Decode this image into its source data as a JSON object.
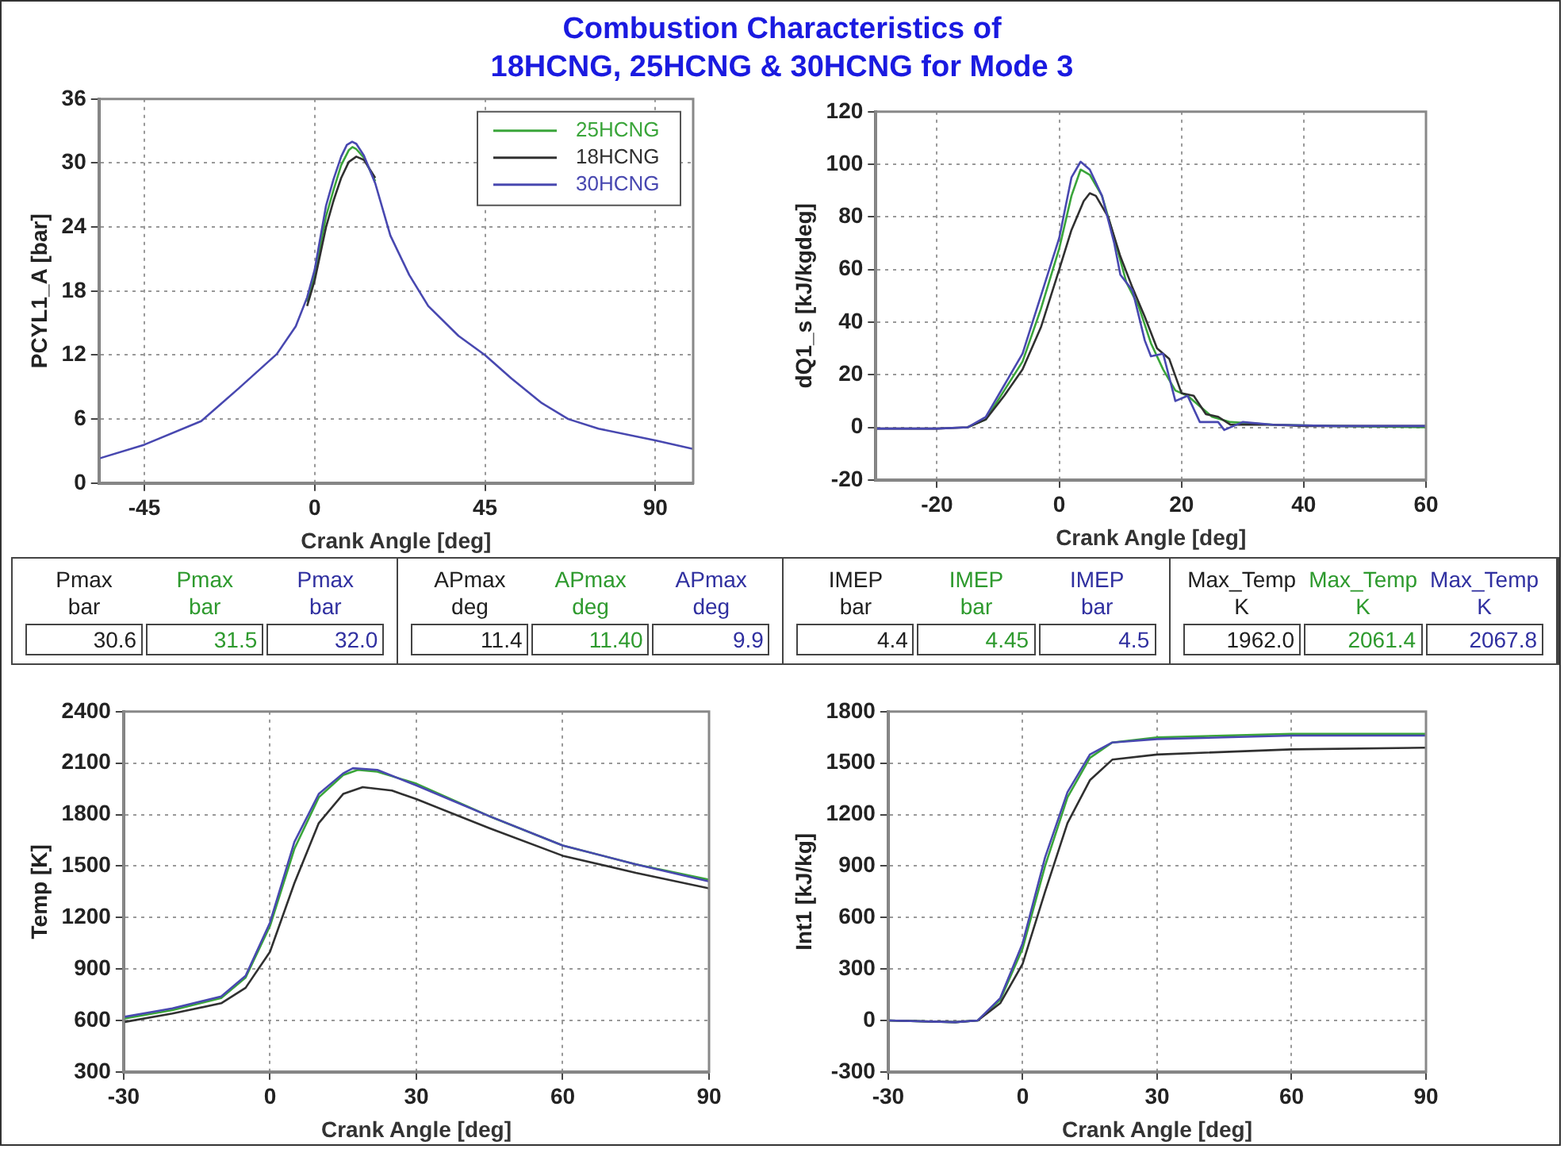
{
  "chart_data": [
    {
      "type": "line",
      "title": "Combustion Characteristics of\n18HCNG, 25HCNG & 30HCNG for Mode 3",
      "xlabel": "Crank Angle [deg]",
      "ylabel": "PCYL1_A [bar]",
      "xlim": [
        -57,
        100
      ],
      "xticks": [
        -45,
        0,
        45,
        90
      ],
      "ylim": [
        0,
        36
      ],
      "yticks": [
        0,
        6,
        12,
        18,
        24,
        30,
        36
      ],
      "grid": true,
      "legend": "top right",
      "series": [
        {
          "name": "25HCNG",
          "color": "#3aa53a",
          "x": [
            -2,
            0,
            3,
            5,
            7,
            9,
            10,
            11,
            13,
            16
          ],
          "values": [
            17,
            19.5,
            25,
            27.5,
            29.8,
            31.2,
            31.5,
            31.3,
            30.5,
            28.3
          ]
        },
        {
          "name": "18HCNG",
          "color": "#303030",
          "x": [
            -2,
            0,
            3,
            5,
            7,
            9,
            11,
            13,
            16
          ],
          "values": [
            16.6,
            19,
            24,
            26.5,
            28.6,
            30.1,
            30.6,
            30.3,
            28.6
          ]
        },
        {
          "name": "30HCNG",
          "color": "#4848b0",
          "x": [
            -57,
            -45,
            -30,
            -20,
            -10,
            -5,
            -2,
            0,
            3,
            5,
            7,
            8.5,
            9.9,
            11,
            13,
            16,
            20,
            25,
            30,
            38,
            45,
            52,
            60,
            67,
            75,
            90,
            100
          ],
          "values": [
            2.3,
            3.6,
            5.8,
            8.9,
            12.1,
            14.7,
            17.4,
            20,
            26,
            28.5,
            30.6,
            31.7,
            32,
            31.8,
            30.7,
            28.1,
            23.2,
            19.5,
            16.6,
            13.8,
            12,
            9.8,
            7.5,
            6,
            5.1,
            4,
            3.2
          ]
        }
      ]
    },
    {
      "type": "line",
      "xlabel": "Crank Angle [deg]",
      "ylabel": "dQ1_s [kJ/kgdeg]",
      "xlim": [
        -30,
        60
      ],
      "xticks": [
        -20,
        0,
        20,
        40,
        60
      ],
      "ylim": [
        -20,
        120
      ],
      "yticks": [
        -20,
        0,
        20,
        40,
        60,
        80,
        100,
        120
      ],
      "grid": true,
      "series": [
        {
          "color": "#3aa53a",
          "x": [
            -15,
            -12,
            -9,
            -6,
            -3,
            0,
            2,
            3.5,
            5,
            7,
            9,
            11,
            13,
            15,
            17,
            19,
            21,
            23,
            25,
            28,
            35,
            45,
            60
          ],
          "values": [
            0,
            3,
            14,
            25,
            45,
            68,
            88,
            98,
            96,
            88,
            72,
            55,
            46,
            32,
            22,
            14,
            12,
            8,
            4,
            2,
            1,
            0.5,
            0
          ]
        },
        {
          "color": "#303030",
          "x": [
            -30,
            -20,
            -15,
            -12,
            -9,
            -6,
            -3,
            0,
            2,
            4,
            5,
            6,
            8,
            10,
            12,
            14,
            16,
            18,
            20,
            22,
            24,
            26,
            28,
            30,
            35,
            40,
            50,
            60
          ],
          "values": [
            -0.5,
            -0.5,
            0,
            3,
            12,
            22,
            38,
            60,
            75,
            86,
            89,
            88,
            80,
            65,
            53,
            42,
            30,
            26,
            13,
            12,
            5,
            4,
            1,
            1,
            1,
            0.5,
            0.5,
            0.5
          ]
        },
        {
          "color": "#4848b0",
          "x": [
            -30,
            -20,
            -15,
            -12,
            -9,
            -6,
            -3,
            0,
            2,
            3.5,
            5,
            7,
            9,
            10,
            12,
            14,
            15,
            17,
            19,
            21,
            23,
            26,
            27,
            30,
            35,
            45,
            60
          ],
          "values": [
            -0.5,
            -0.5,
            0,
            4,
            16,
            28,
            50,
            72,
            95,
            101,
            98,
            88,
            70,
            58,
            52,
            33,
            27,
            28,
            10,
            12,
            2,
            2,
            -1,
            2,
            1,
            0.5,
            0.5
          ]
        }
      ]
    },
    {
      "type": "other",
      "categories": [
        "Pmax\nbar",
        "APmax\ndeg",
        "IMEP\nbar",
        "Max_Temp\nK"
      ],
      "series": [
        {
          "color": "#202020",
          "values": [
            30.6,
            11.4,
            4.4,
            1962.0
          ],
          "value_labels": [
            "30.6",
            "11.4",
            "4.4",
            "1962.0"
          ]
        },
        {
          "color": "#2e9a2e",
          "values": [
            31.5,
            11.4,
            4.45,
            2061.4
          ],
          "value_labels": [
            "31.5",
            "11.40",
            "4.45",
            "2061.4"
          ]
        },
        {
          "color": "#3030a0",
          "values": [
            32.0,
            9.9,
            4.5,
            2067.8
          ],
          "value_labels": [
            "32.0",
            "9.9",
            "4.5",
            "2067.8"
          ]
        }
      ]
    },
    {
      "type": "line",
      "xlabel": "Crank Angle [deg]",
      "ylabel": "Temp [K]",
      "xlim": [
        -30,
        90
      ],
      "xticks": [
        -30,
        0,
        30,
        60,
        90
      ],
      "ylim": [
        300,
        2400
      ],
      "yticks": [
        300,
        600,
        900,
        1200,
        1500,
        1800,
        2100,
        2400
      ],
      "grid": true,
      "series": [
        {
          "color": "#3aa53a",
          "x": [
            -30,
            -20,
            -10,
            -5,
            0,
            5,
            10,
            15,
            18,
            22,
            30,
            45,
            60,
            75,
            90
          ],
          "values": [
            610,
            660,
            730,
            850,
            1150,
            1600,
            1900,
            2030,
            2060,
            2050,
            1980,
            1790,
            1620,
            1510,
            1420
          ]
        },
        {
          "color": "#303030",
          "x": [
            -30,
            -20,
            -10,
            -5,
            0,
            5,
            10,
            15,
            19,
            25,
            30,
            45,
            60,
            75,
            90
          ],
          "values": [
            590,
            640,
            700,
            790,
            1000,
            1400,
            1750,
            1920,
            1960,
            1940,
            1890,
            1720,
            1560,
            1460,
            1370
          ]
        },
        {
          "color": "#4848b0",
          "x": [
            -30,
            -20,
            -10,
            -5,
            0,
            5,
            10,
            15,
            17,
            22,
            30,
            45,
            60,
            75,
            90
          ],
          "values": [
            620,
            670,
            740,
            860,
            1170,
            1640,
            1920,
            2040,
            2070,
            2060,
            1970,
            1790,
            1620,
            1510,
            1410
          ]
        }
      ]
    },
    {
      "type": "line",
      "xlabel": "Crank Angle [deg]",
      "ylabel": "Int1 [kJ/kg]",
      "xlim": [
        -30,
        90
      ],
      "xticks": [
        -30,
        0,
        30,
        60,
        90
      ],
      "ylim": [
        -300,
        1800
      ],
      "yticks": [
        -300,
        0,
        300,
        600,
        900,
        1200,
        1500,
        1800
      ],
      "grid": true,
      "series": [
        {
          "color": "#3aa53a",
          "x": [
            -30,
            -15,
            -10,
            -5,
            0,
            5,
            10,
            15,
            20,
            30,
            60,
            90
          ],
          "values": [
            0,
            -10,
            0,
            120,
            420,
            900,
            1300,
            1530,
            1620,
            1650,
            1670,
            1670
          ]
        },
        {
          "color": "#303030",
          "x": [
            -30,
            -15,
            -10,
            -5,
            0,
            5,
            10,
            15,
            20,
            30,
            60,
            90
          ],
          "values": [
            0,
            -10,
            0,
            100,
            330,
            750,
            1150,
            1400,
            1520,
            1550,
            1580,
            1590
          ]
        },
        {
          "color": "#4848b0",
          "x": [
            -30,
            -15,
            -10,
            -5,
            0,
            5,
            10,
            15,
            20,
            30,
            60,
            90
          ],
          "values": [
            0,
            -10,
            0,
            130,
            450,
            950,
            1330,
            1550,
            1620,
            1640,
            1660,
            1660
          ]
        }
      ]
    }
  ]
}
